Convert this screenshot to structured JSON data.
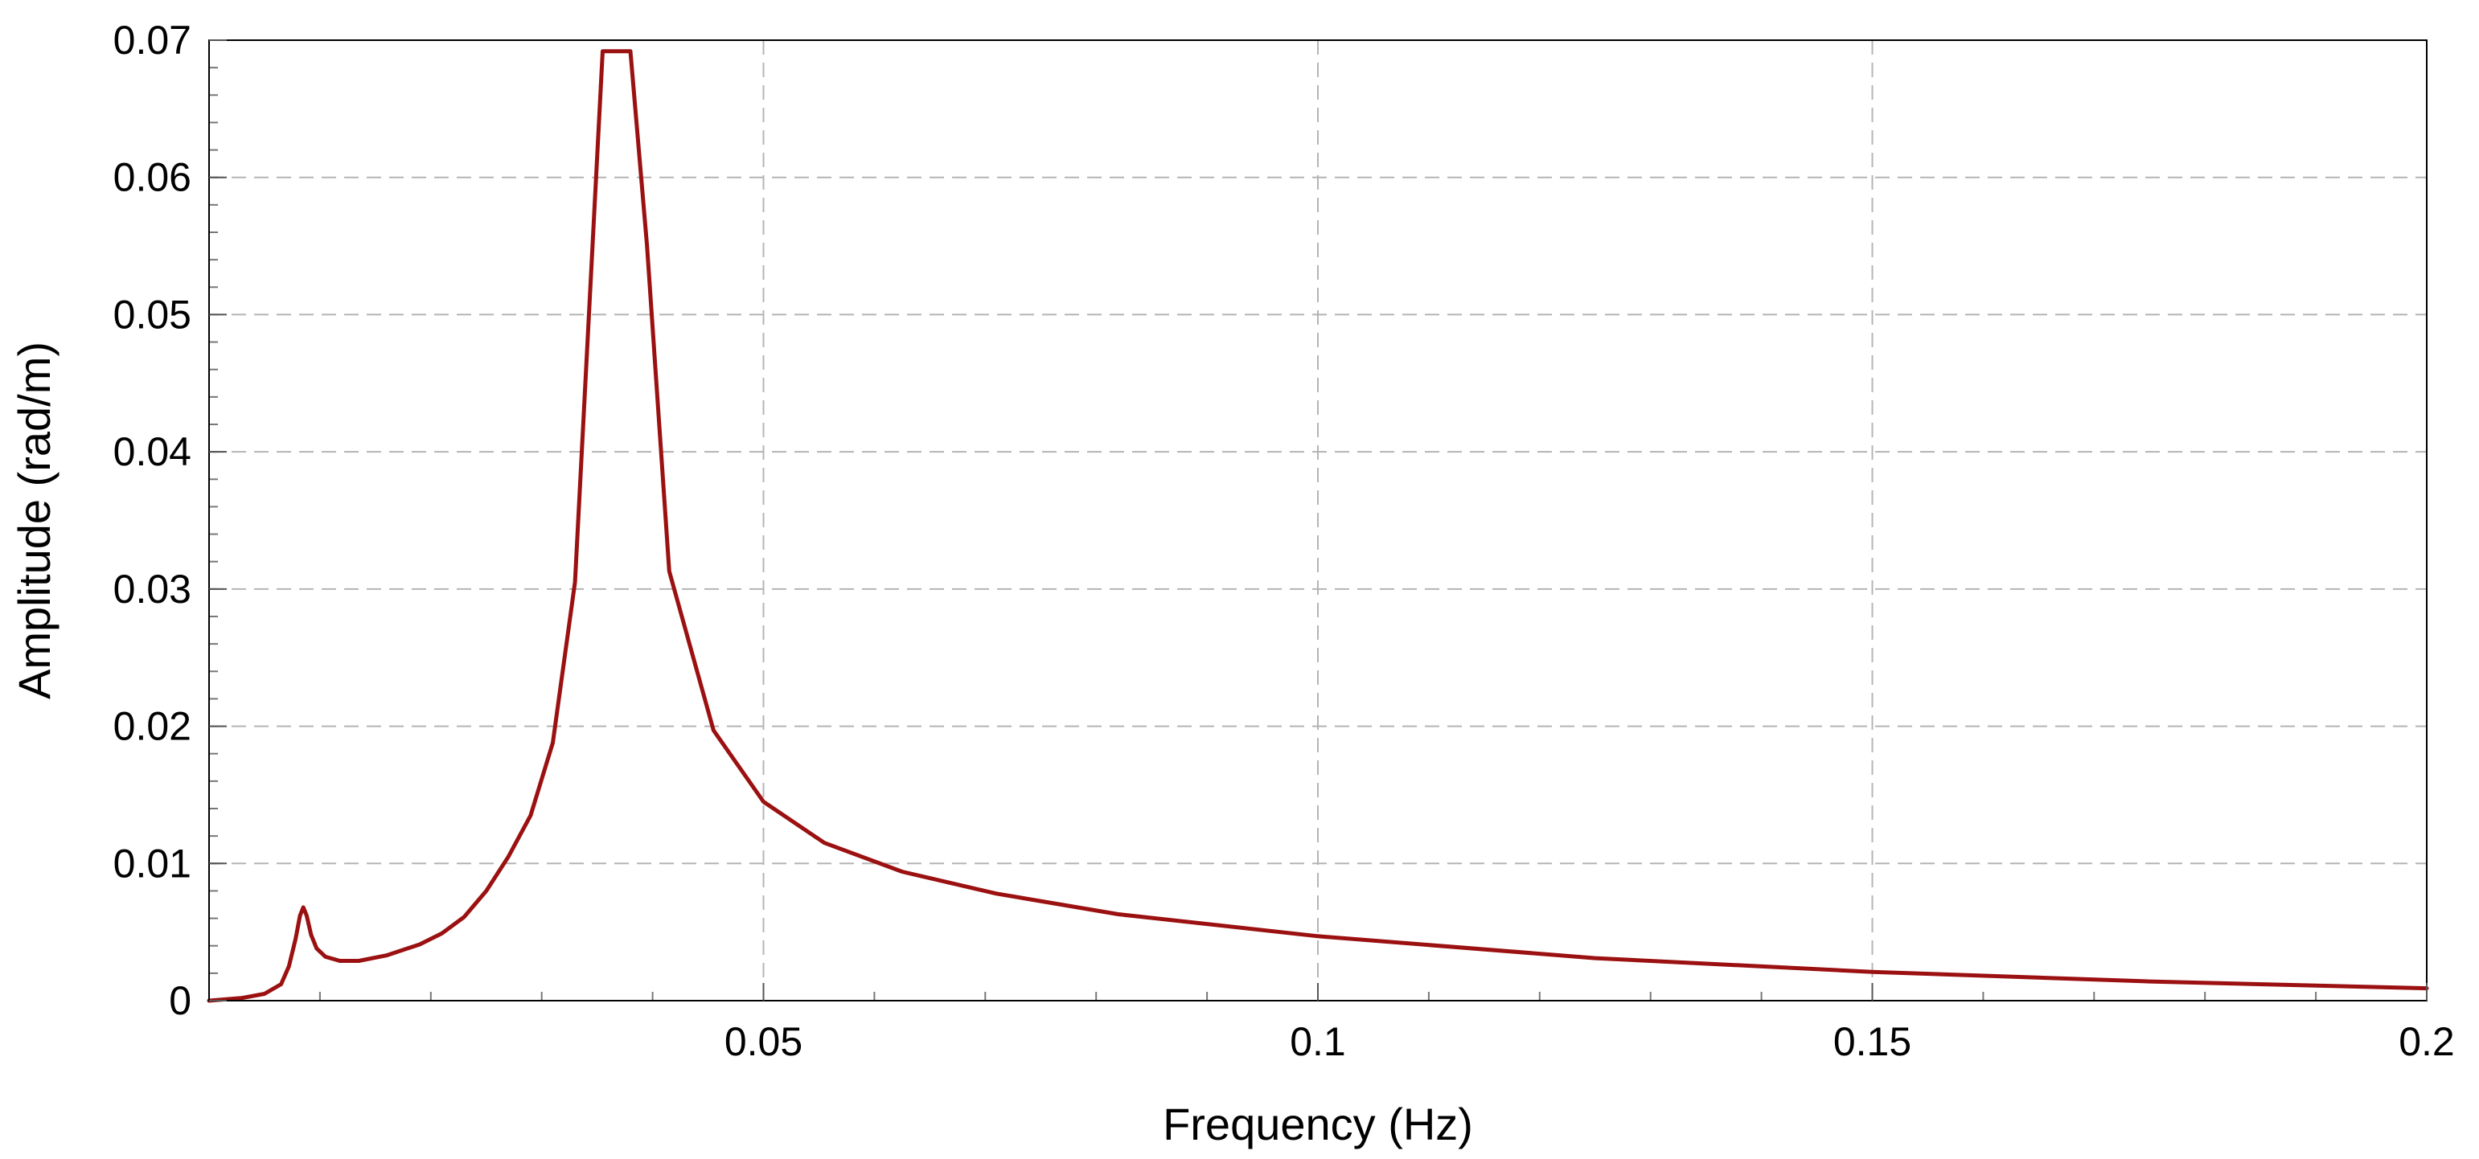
{
  "chart_data": {
    "type": "line",
    "title": "",
    "xlabel": "Frequency (Hz)",
    "ylabel": "Amplitude (rad/m)",
    "xlim": [
      0,
      0.2
    ],
    "ylim": [
      0,
      0.07
    ],
    "x_ticks": [
      {
        "value": 0.05,
        "label": "0.05"
      },
      {
        "value": 0.1,
        "label": "0.1"
      },
      {
        "value": 0.15,
        "label": "0.15"
      },
      {
        "value": 0.2,
        "label": "0.2"
      }
    ],
    "y_ticks": [
      {
        "value": 0,
        "label": "0"
      },
      {
        "value": 0.01,
        "label": "0.01"
      },
      {
        "value": 0.02,
        "label": "0.02"
      },
      {
        "value": 0.03,
        "label": "0.03"
      },
      {
        "value": 0.04,
        "label": "0.04"
      },
      {
        "value": 0.05,
        "label": "0.05"
      },
      {
        "value": 0.06,
        "label": "0.06"
      },
      {
        "value": 0.07,
        "label": "0.07"
      }
    ],
    "x_minor_step": 0.01,
    "y_minor_step": 0.002,
    "grid": true,
    "line_color": "#9B1010",
    "grid_color": "#B4B4B4",
    "series": [
      {
        "x": [
          0,
          0.003,
          0.005,
          0.0065,
          0.0072,
          0.0078,
          0.0082,
          0.0085,
          0.0088,
          0.0092,
          0.0097,
          0.0105,
          0.0118,
          0.0135,
          0.016,
          0.019,
          0.021,
          0.023,
          0.025,
          0.027,
          0.029,
          0.031,
          0.033,
          0.0355,
          0.038,
          0.0395,
          0.0415,
          0.0455,
          0.05,
          0.0555,
          0.0625,
          0.071,
          0.082,
          0.1,
          0.125,
          0.15,
          0.175,
          0.2
        ],
        "y": [
          0,
          0.0002,
          0.0005,
          0.0012,
          0.0025,
          0.0045,
          0.0062,
          0.0068,
          0.0062,
          0.0048,
          0.0038,
          0.0032,
          0.0029,
          0.0029,
          0.0033,
          0.0041,
          0.0049,
          0.0061,
          0.008,
          0.0105,
          0.0135,
          0.0188,
          0.0305,
          0.0692,
          0.0692,
          0.055,
          0.0313,
          0.0197,
          0.0145,
          0.0115,
          0.0094,
          0.0078,
          0.0063,
          0.0047,
          0.0031,
          0.0021,
          0.0014,
          0.0009
        ]
      }
    ]
  }
}
